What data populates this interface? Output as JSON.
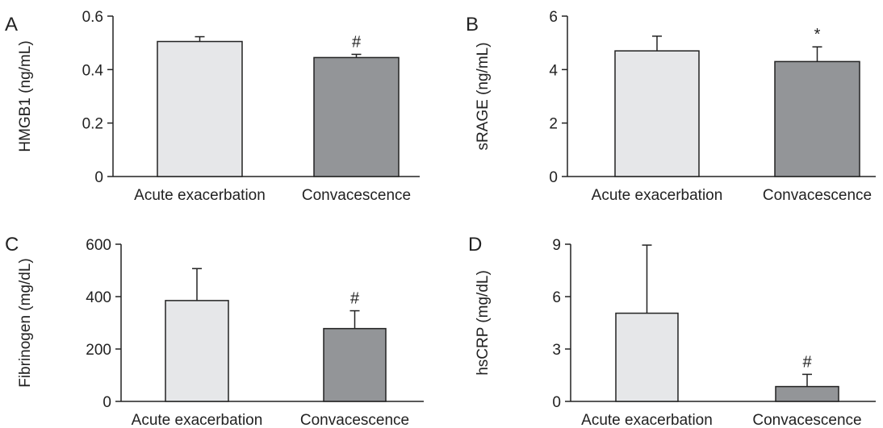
{
  "chart_data": [
    {
      "type": "bar",
      "panel": "A",
      "categories": [
        "Acute exacerbation",
        "Convacescence"
      ],
      "values": [
        0.505,
        0.445
      ],
      "errors": [
        0.018,
        0.012
      ],
      "significance": [
        "",
        "#"
      ],
      "ylabel": "HMGB1 (ng/mL)",
      "ylim": [
        0,
        0.6
      ],
      "yticks": [
        "0",
        "0.2",
        "0.4",
        "0.6"
      ],
      "yticks_values": [
        0,
        0.2,
        0.4,
        0.6
      ],
      "colors": [
        "#e6e7e9",
        "#939598"
      ]
    },
    {
      "type": "bar",
      "panel": "B",
      "categories": [
        "Acute exacerbation",
        "Convacescence"
      ],
      "values": [
        4.7,
        4.3
      ],
      "errors": [
        0.55,
        0.55
      ],
      "significance": [
        "",
        "*"
      ],
      "ylabel": "sRAGE (ng/mL)",
      "ylim": [
        0,
        6
      ],
      "yticks": [
        "0",
        "2",
        "4",
        "6"
      ],
      "yticks_values": [
        0,
        2,
        4,
        6
      ],
      "colors": [
        "#e6e7e9",
        "#939598"
      ]
    },
    {
      "type": "bar",
      "panel": "C",
      "categories": [
        "Acute exacerbation",
        "Convacescence"
      ],
      "values": [
        385,
        278
      ],
      "errors": [
        122,
        68
      ],
      "significance": [
        "",
        "#"
      ],
      "ylabel": "Fibrinogen (mg/dL)",
      "ylim": [
        0,
        600
      ],
      "yticks": [
        "0",
        "200",
        "400",
        "600"
      ],
      "yticks_values": [
        0,
        200,
        400,
        600
      ],
      "colors": [
        "#e6e7e9",
        "#939598"
      ]
    },
    {
      "type": "bar",
      "panel": "D",
      "categories": [
        "Acute exacerbation",
        "Convacescence"
      ],
      "values": [
        5.05,
        0.85
      ],
      "errors": [
        3.9,
        0.7
      ],
      "significance": [
        "",
        "#"
      ],
      "ylabel": "hsCRP (mg/dL)",
      "ylim": [
        0,
        9
      ],
      "yticks": [
        "0",
        "3",
        "6",
        "9"
      ],
      "yticks_values": [
        0,
        3,
        6,
        9
      ],
      "colors": [
        "#e6e7e9",
        "#939598"
      ]
    }
  ]
}
